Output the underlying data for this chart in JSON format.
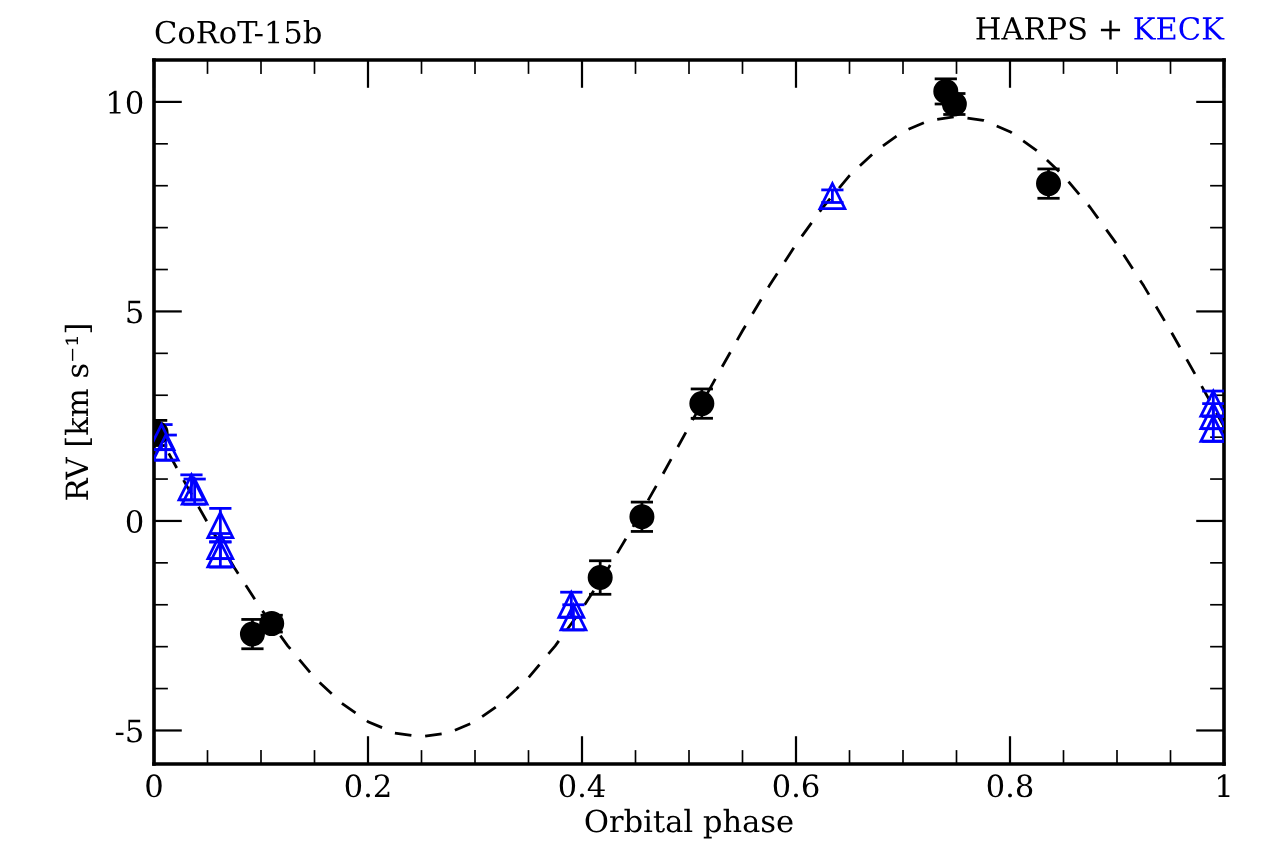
{
  "chart_data": {
    "type": "scatter",
    "title": "CoRoT-15b",
    "xlabel": "Orbital phase",
    "ylabel": "RV [km s⁻¹]",
    "xlim": [
      0,
      1
    ],
    "ylim": [
      -5.8,
      11
    ],
    "xticks": [
      0,
      0.2,
      0.4,
      0.6,
      0.8,
      1
    ],
    "yticks": [
      -5,
      0,
      5,
      10
    ],
    "grid": false,
    "legend": false,
    "annotations": [
      "+"
    ],
    "series": [
      {
        "name": "HARPS",
        "color": "#000000",
        "marker": "circle",
        "x": [
          0.002,
          0.092,
          0.11,
          0.417,
          0.456,
          0.512,
          0.74,
          0.748,
          0.836
        ],
        "values": [
          2.1,
          -2.7,
          -2.45,
          -1.35,
          0.1,
          2.8,
          10.25,
          9.95,
          8.05
        ],
        "errors": [
          0.3,
          0.35,
          0.2,
          0.4,
          0.35,
          0.35,
          0.3,
          0.25,
          0.35
        ]
      },
      {
        "name": "KECK",
        "color": "#0000ff",
        "marker": "triangle",
        "x": [
          0.007,
          0.011,
          0.035,
          0.038,
          0.062,
          0.062,
          0.062,
          0.39,
          0.392,
          0.634,
          0.99,
          0.99,
          0.99
        ],
        "values": [
          2.0,
          1.75,
          0.8,
          0.7,
          -0.1,
          -0.6,
          -0.8,
          -2.0,
          -2.3,
          7.75,
          2.8,
          2.5,
          2.2
        ],
        "errors": [
          0.3,
          0.3,
          0.3,
          0.3,
          0.4,
          0.3,
          0.3,
          0.3,
          0.3,
          0.15,
          0.3,
          0.3,
          0.3
        ]
      },
      {
        "type": "line",
        "color": "#000000",
        "line_style": "dashed",
        "marker": "none",
        "x": [
          0,
          0.025,
          0.05,
          0.075,
          0.1,
          0.125,
          0.15,
          0.175,
          0.2,
          0.225,
          0.25,
          0.275,
          0.3,
          0.325,
          0.35,
          0.375,
          0.4,
          0.425,
          0.45,
          0.475,
          0.5,
          0.525,
          0.55,
          0.575,
          0.6,
          0.625,
          0.65,
          0.675,
          0.7,
          0.725,
          0.75,
          0.775,
          0.8,
          0.825,
          0.85,
          0.875,
          0.9,
          0.925,
          0.95,
          0.975,
          1
        ],
        "values": [
          2.25,
          1.09,
          -0.04,
          -1.11,
          -2.1,
          -2.98,
          -3.74,
          -4.34,
          -4.79,
          -5.06,
          -5.15,
          -5.06,
          -4.79,
          -4.34,
          -3.74,
          -2.98,
          -2.1,
          -1.11,
          -0.04,
          1.09,
          2.25,
          3.41,
          4.54,
          5.61,
          6.6,
          7.48,
          8.24,
          8.84,
          9.29,
          9.56,
          9.65,
          9.56,
          9.29,
          8.84,
          8.24,
          7.48,
          6.6,
          5.61,
          4.54,
          3.41,
          2.25
        ]
      }
    ]
  }
}
